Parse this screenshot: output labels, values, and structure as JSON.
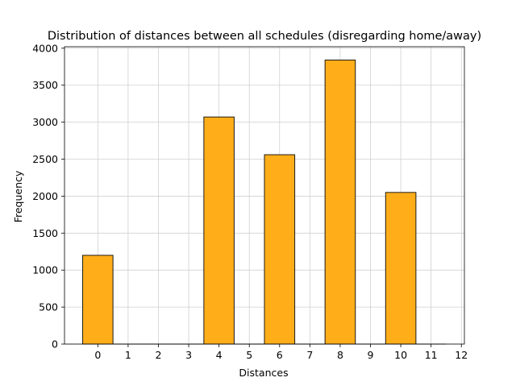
{
  "chart_data": {
    "type": "bar",
    "title": "Distribution of distances between all schedules (disregarding home/away)",
    "xlabel": "Distances",
    "ylabel": "Frequency",
    "x": [
      0,
      2,
      4,
      6,
      8,
      10
    ],
    "values": [
      1200,
      0,
      3070,
      2560,
      3840,
      2050
    ],
    "xlim": [
      -1.1,
      12.1
    ],
    "ylim": [
      0,
      4020
    ],
    "xticks": [
      0,
      1,
      2,
      3,
      4,
      5,
      6,
      7,
      8,
      9,
      10,
      11,
      12
    ],
    "yticks": [
      0,
      500,
      1000,
      1500,
      2000,
      2500,
      3000,
      3500,
      4000
    ],
    "grid": true,
    "colors": {
      "bar_fill": "#ffae1a",
      "bar_edge": "#1f1a12",
      "grid": "#d0d0d0",
      "axis": "#000000"
    }
  }
}
